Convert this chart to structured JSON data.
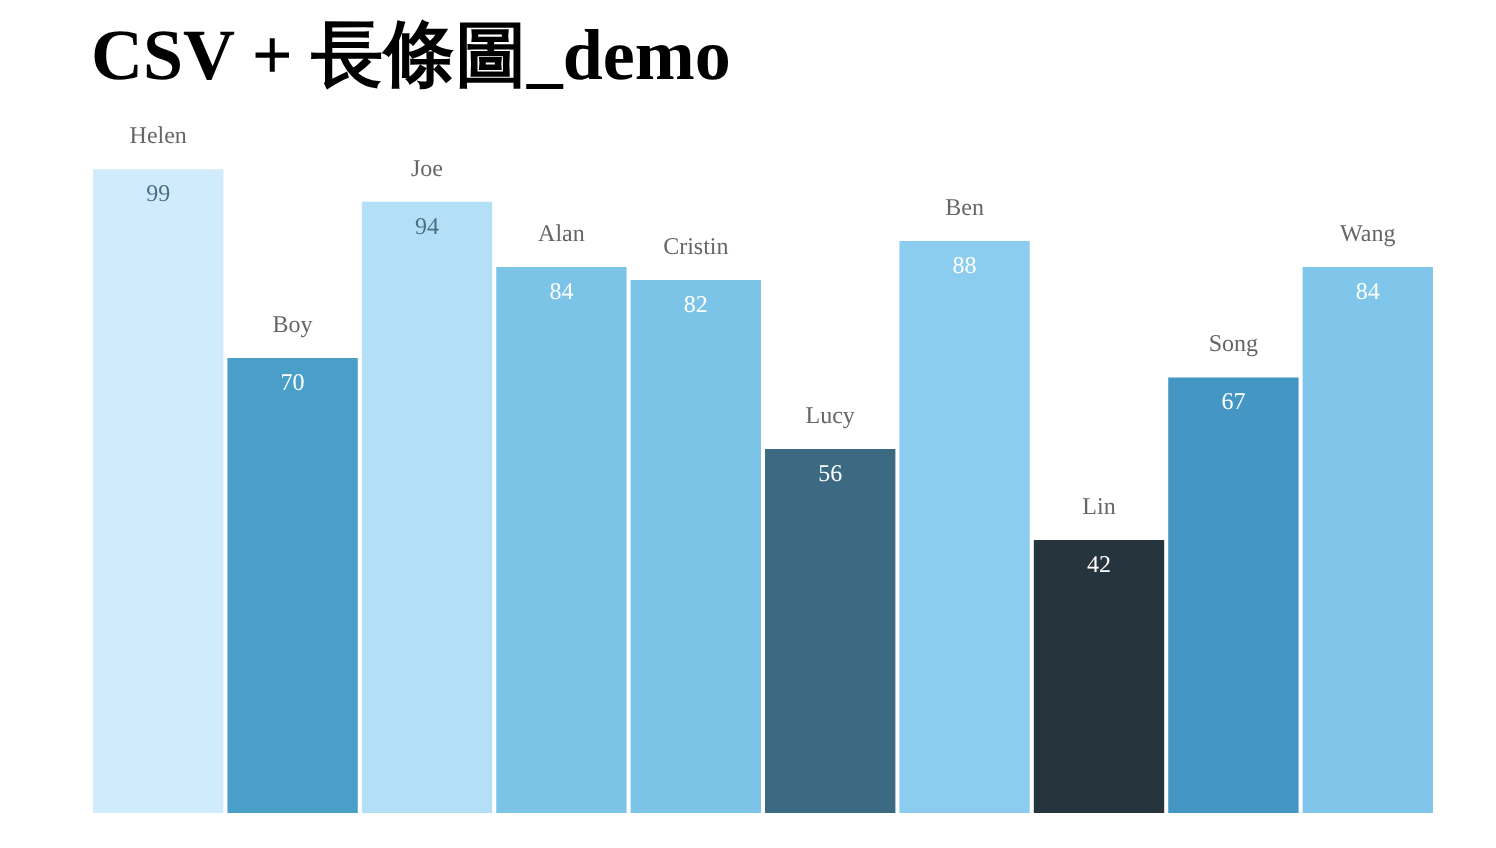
{
  "chart_data": {
    "type": "bar",
    "title": "CSV + 長條圖_demo",
    "categories": [
      "Helen",
      "Boy",
      "Joe",
      "Alan",
      "Cristin",
      "Lucy",
      "Ben",
      "Lin",
      "Song",
      "Wang"
    ],
    "values": [
      99,
      70,
      94,
      84,
      82,
      56,
      88,
      42,
      67,
      84
    ],
    "colors": [
      "#d0ebfb",
      "#4a9fc9",
      "#b3e0f6",
      "#7cc3e8",
      "#7cc3e8",
      "#3b6a82",
      "#8ccdef",
      "#26343d",
      "#4497c4",
      "#80c6ea"
    ],
    "data_labels": true,
    "grid": false,
    "tick_labels": false
  }
}
